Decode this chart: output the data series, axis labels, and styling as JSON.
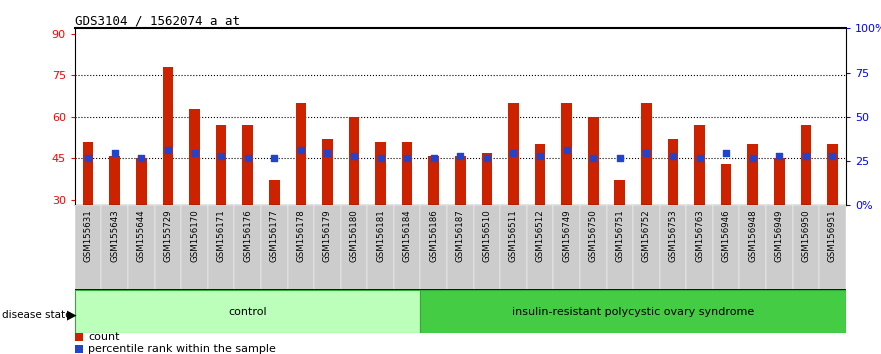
{
  "title": "GDS3104 / 1562074_a_at",
  "samples": [
    "GSM155631",
    "GSM155643",
    "GSM155644",
    "GSM155729",
    "GSM156170",
    "GSM156171",
    "GSM156176",
    "GSM156177",
    "GSM156178",
    "GSM156179",
    "GSM156180",
    "GSM156181",
    "GSM156184",
    "GSM156186",
    "GSM156187",
    "GSM156510",
    "GSM156511",
    "GSM156512",
    "GSM156749",
    "GSM156750",
    "GSM156751",
    "GSM156752",
    "GSM156753",
    "GSM156763",
    "GSM156946",
    "GSM156948",
    "GSM156949",
    "GSM156950",
    "GSM156951"
  ],
  "bar_heights": [
    51,
    46,
    45,
    78,
    63,
    57,
    57,
    37,
    65,
    52,
    60,
    51,
    51,
    46,
    46,
    47,
    65,
    50,
    65,
    60,
    37,
    65,
    52,
    57,
    43,
    50,
    45,
    57,
    50
  ],
  "blue_dot_values": [
    45,
    47,
    45,
    48,
    47,
    46,
    45,
    45,
    48,
    47,
    46,
    45,
    45,
    45,
    46,
    45,
    47,
    46,
    48,
    45,
    45,
    47,
    46,
    45,
    47,
    45,
    46,
    46,
    46
  ],
  "control_count": 13,
  "disease_count": 16,
  "ymin": 28,
  "ymax": 92,
  "yticks_left": [
    30,
    45,
    60,
    75,
    90
  ],
  "yticks_right": [
    0,
    25,
    50,
    75,
    100
  ],
  "ytick_labels_right": [
    "0%",
    "25",
    "50",
    "75",
    "100%"
  ],
  "bar_color": "#cc2200",
  "dot_color": "#2244cc",
  "control_color": "#bbffbb",
  "disease_color": "#44cc44",
  "label_bg_color": "#cccccc",
  "group_label": "disease state",
  "control_label": "control",
  "disease_label": "insulin-resistant polycystic ovary syndrome",
  "legend_count": "count",
  "legend_percentile": "percentile rank within the sample",
  "dotted_lines": [
    45,
    60,
    75
  ],
  "bar_width": 0.4
}
